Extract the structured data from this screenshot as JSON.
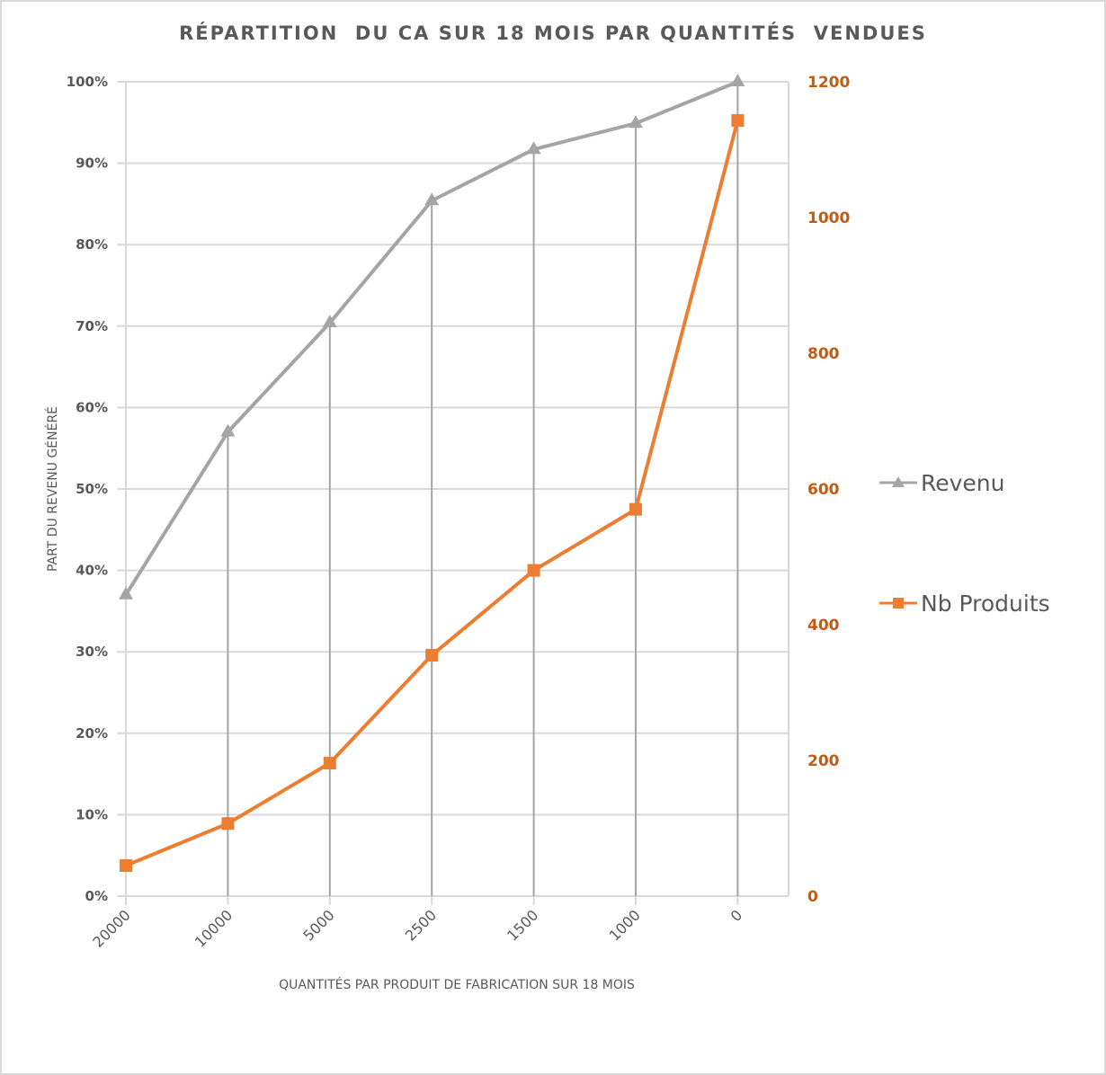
{
  "chart_data": {
    "type": "line",
    "title": "RÉPARTITION  DU CA SUR 18 MOIS PAR QUANTITÉS  VENDUES",
    "xlabel": "QUANTITÉS PAR PRODUIT DE FABRICATION SUR 18 MOIS",
    "ylabel": "PART DU REVENU GÉNÉRÉ",
    "categories": [
      "20000",
      "10000",
      "5000",
      "2500",
      "1500",
      "1000",
      "0"
    ],
    "y_left": {
      "min": 0,
      "max": 1,
      "ticks": [
        "0%",
        "10%",
        "20%",
        "30%",
        "40%",
        "50%",
        "60%",
        "70%",
        "80%",
        "90%",
        "100%"
      ]
    },
    "y_right": {
      "min": 0,
      "max": 1200,
      "ticks": [
        "0",
        "200",
        "400",
        "600",
        "800",
        "1000",
        "1200"
      ]
    },
    "grid": true,
    "legend_position": "right",
    "series": [
      {
        "name": "Revenu",
        "axis": "left",
        "color": "#a5a5a5",
        "marker": "triangle",
        "values": [
          0.37,
          0.57,
          0.704,
          0.854,
          0.917,
          0.949,
          1.0
        ]
      },
      {
        "name": "Nb Produits",
        "axis": "right",
        "color": "#ed7d31",
        "marker": "square",
        "values": [
          45,
          107,
          196,
          355,
          480,
          570,
          1143
        ]
      }
    ]
  }
}
